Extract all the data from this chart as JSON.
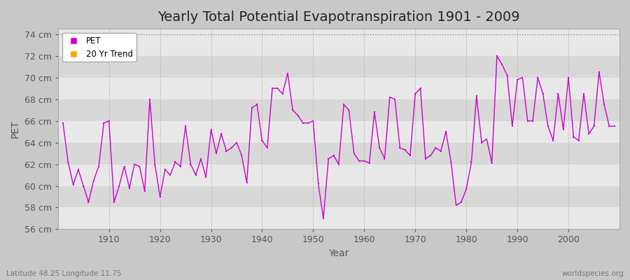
{
  "title": "Yearly Total Potential Evapotranspiration 1901 - 2009",
  "xlabel": "Year",
  "ylabel": "PET",
  "lat_lon_label": "Latitude 48.25 Longitude 11.75",
  "watermark": "worldspecies.org",
  "line_color": "#cc00cc",
  "trend_color": "#FFA500",
  "ylim": [
    56,
    74.5
  ],
  "yticks": [
    56,
    58,
    60,
    62,
    64,
    66,
    68,
    70,
    72,
    74
  ],
  "ytick_labels": [
    "56 cm",
    "58 cm",
    "60 cm",
    "62 cm",
    "64 cm",
    "66 cm",
    "68 cm",
    "70 cm",
    "72 cm",
    "74 cm"
  ],
  "xlim": [
    1900,
    2010
  ],
  "xticks": [
    1910,
    1920,
    1930,
    1940,
    1950,
    1960,
    1970,
    1980,
    1990,
    2000
  ],
  "years": [
    1901,
    1902,
    1903,
    1904,
    1905,
    1906,
    1907,
    1908,
    1909,
    1910,
    1911,
    1912,
    1913,
    1914,
    1915,
    1916,
    1917,
    1918,
    1919,
    1920,
    1921,
    1922,
    1923,
    1924,
    1925,
    1926,
    1927,
    1928,
    1929,
    1930,
    1931,
    1932,
    1933,
    1934,
    1935,
    1936,
    1937,
    1938,
    1939,
    1940,
    1941,
    1942,
    1943,
    1944,
    1945,
    1946,
    1947,
    1948,
    1949,
    1950,
    1951,
    1952,
    1953,
    1954,
    1955,
    1956,
    1957,
    1958,
    1959,
    1960,
    1961,
    1962,
    1963,
    1964,
    1965,
    1966,
    1967,
    1968,
    1969,
    1970,
    1971,
    1972,
    1973,
    1974,
    1975,
    1976,
    1977,
    1978,
    1979,
    1980,
    1981,
    1982,
    1983,
    1984,
    1985,
    1986,
    1987,
    1988,
    1989,
    1990,
    1991,
    1992,
    1993,
    1994,
    1995,
    1996,
    1997,
    1998,
    1999,
    2000,
    2001,
    2002,
    2003,
    2004,
    2005,
    2006,
    2007,
    2008,
    2009
  ],
  "pet": [
    65.8,
    62.2,
    60.1,
    61.5,
    60.0,
    58.5,
    60.5,
    61.8,
    65.8,
    66.0,
    58.5,
    60.0,
    61.8,
    59.8,
    62.0,
    61.8,
    59.5,
    68.0,
    62.0,
    59.0,
    61.5,
    61.0,
    62.2,
    61.8,
    65.5,
    62.0,
    61.0,
    62.5,
    60.8,
    65.2,
    63.0,
    64.8,
    63.2,
    63.5,
    64.0,
    62.8,
    60.3,
    67.2,
    67.5,
    64.2,
    63.5,
    69.0,
    69.0,
    68.5,
    70.4,
    67.0,
    66.5,
    65.8,
    65.8,
    66.0,
    60.2,
    57.0,
    62.5,
    62.8,
    62.0,
    67.5,
    67.0,
    63.0,
    62.3,
    62.3,
    62.1,
    66.8,
    63.5,
    62.5,
    68.2,
    68.0,
    63.5,
    63.3,
    62.8,
    68.5,
    69.0,
    62.5,
    62.8,
    63.5,
    63.2,
    65.0,
    62.2,
    58.2,
    58.5,
    59.7,
    62.2,
    68.3,
    64.0,
    64.3,
    62.1,
    72.0,
    71.2,
    70.2,
    65.5,
    69.8,
    70.0,
    66.0,
    66.0,
    70.0,
    68.5,
    65.5,
    64.2,
    68.5,
    65.2,
    70.0,
    64.5,
    64.2,
    68.5,
    64.8,
    65.5,
    70.5,
    67.5,
    65.5,
    65.5
  ],
  "legend_pet_color": "#cc00cc",
  "legend_trend_color": "#FFA500",
  "band_colors": [
    "#e8e8e8",
    "#d8d8d8"
  ],
  "fig_bg": "#c8c8c8",
  "title_fontsize": 14,
  "tick_fontsize": 9
}
